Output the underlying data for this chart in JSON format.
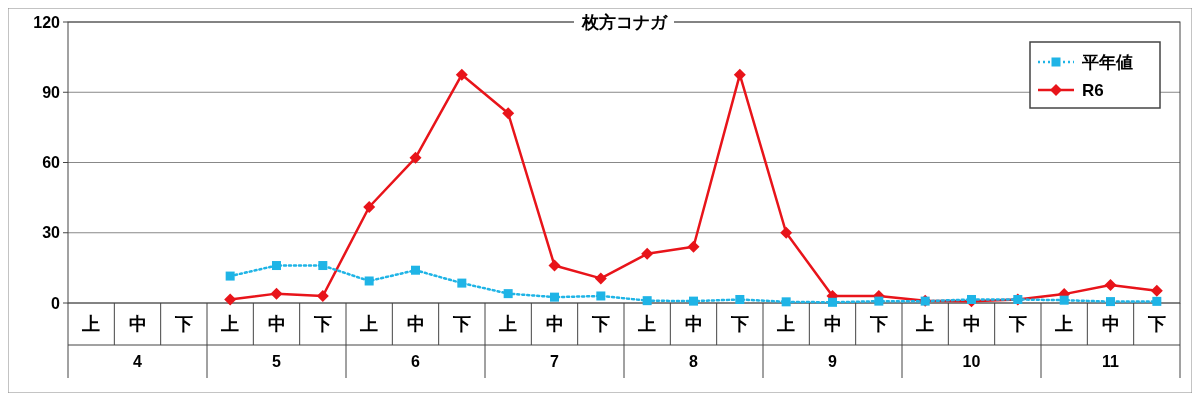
{
  "chart_data": {
    "type": "line",
    "title": "枚方コナガ",
    "categories": [
      "上",
      "中",
      "下",
      "上",
      "中",
      "下",
      "上",
      "中",
      "下",
      "上",
      "中",
      "下",
      "上",
      "中",
      "下",
      "上",
      "中",
      "下",
      "上",
      "中",
      "下",
      "上",
      "中",
      "下"
    ],
    "annotations": [
      "4",
      "5",
      "6",
      "7",
      "8",
      "9",
      "10",
      "11"
    ],
    "series": [
      {
        "name": "平年値",
        "color": "#1fb4e6",
        "marker": "square",
        "line_style": "dotted",
        "values": [
          null,
          null,
          null,
          11.5,
          16,
          16,
          9.4,
          14,
          8.5,
          4,
          2.5,
          3,
          1,
          0.8,
          1.5,
          0.5,
          0.3,
          0.8,
          0.8,
          1.5,
          1.5,
          1.2,
          0.6,
          0.7
        ]
      },
      {
        "name": "R6",
        "color": "#e8141a",
        "marker": "diamond",
        "line_style": "solid",
        "values": [
          null,
          null,
          null,
          1.5,
          4,
          3,
          41,
          62,
          97.5,
          81,
          16,
          10.5,
          21,
          24,
          97.5,
          30,
          3,
          3,
          1,
          0.7,
          1.5,
          3.8,
          7.7,
          5.2
        ]
      }
    ],
    "ylim": [
      0,
      120
    ],
    "yticks": [
      0,
      30,
      60,
      90,
      120
    ],
    "grid": "y",
    "legend": "top right"
  }
}
